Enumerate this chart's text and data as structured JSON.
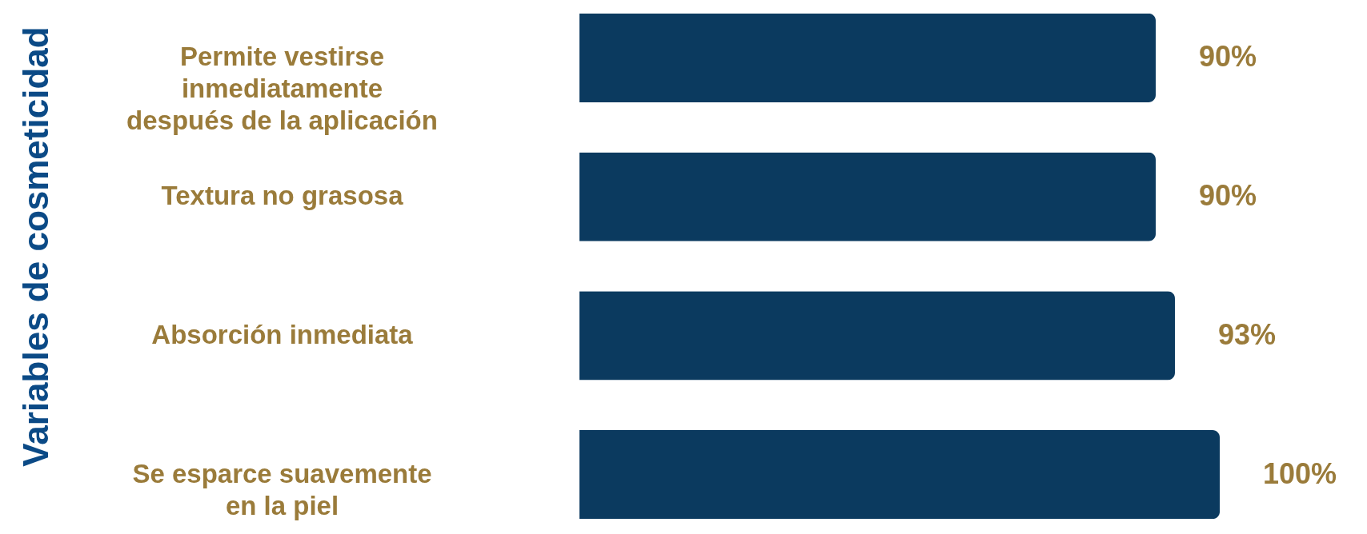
{
  "chart_data": {
    "type": "bar",
    "orientation": "horizontal",
    "ylabel": "Variables de cosmeticidad",
    "categories": [
      "Permite vestirse\ninmediatamente\ndespués de la aplicación",
      "Textura no grasosa",
      "Absorción inmediata",
      "Se esparce suavemente\nen la piel"
    ],
    "values": [
      90,
      90,
      93,
      100
    ],
    "value_labels": [
      "90%",
      "90%",
      "93%",
      "100%"
    ],
    "color": "#0b3a5f",
    "grid": false
  }
}
